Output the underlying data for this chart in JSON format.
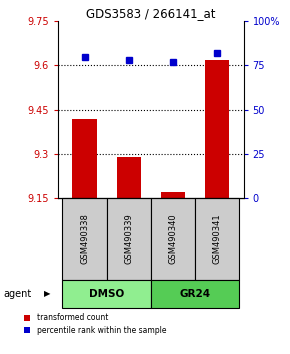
{
  "title": "GDS3583 / 266141_at",
  "samples": [
    "GSM490338",
    "GSM490339",
    "GSM490340",
    "GSM490341"
  ],
  "bar_values": [
    9.42,
    9.29,
    9.17,
    9.62
  ],
  "percentile_values": [
    80,
    78,
    77,
    82
  ],
  "bar_color": "#cc0000",
  "percentile_color": "#0000cc",
  "left_ylim": [
    9.15,
    9.75
  ],
  "right_ylim": [
    0,
    100
  ],
  "left_yticks": [
    9.15,
    9.3,
    9.45,
    9.6,
    9.75
  ],
  "right_yticks": [
    0,
    25,
    50,
    75,
    100
  ],
  "right_yticklabels": [
    "0",
    "25",
    "50",
    "75",
    "100%"
  ],
  "hlines": [
    9.3,
    9.45,
    9.6
  ],
  "groups": [
    {
      "label": "DMSO",
      "indices": [
        0,
        1
      ],
      "color": "#90ee90"
    },
    {
      "label": "GR24",
      "indices": [
        2,
        3
      ],
      "color": "#55cc55"
    }
  ],
  "group_row_label": "agent",
  "sample_box_color": "#cccccc",
  "legend_bar_label": "transformed count",
  "legend_point_label": "percentile rank within the sample",
  "background_color": "#ffffff",
  "plot_bg_color": "#ffffff"
}
